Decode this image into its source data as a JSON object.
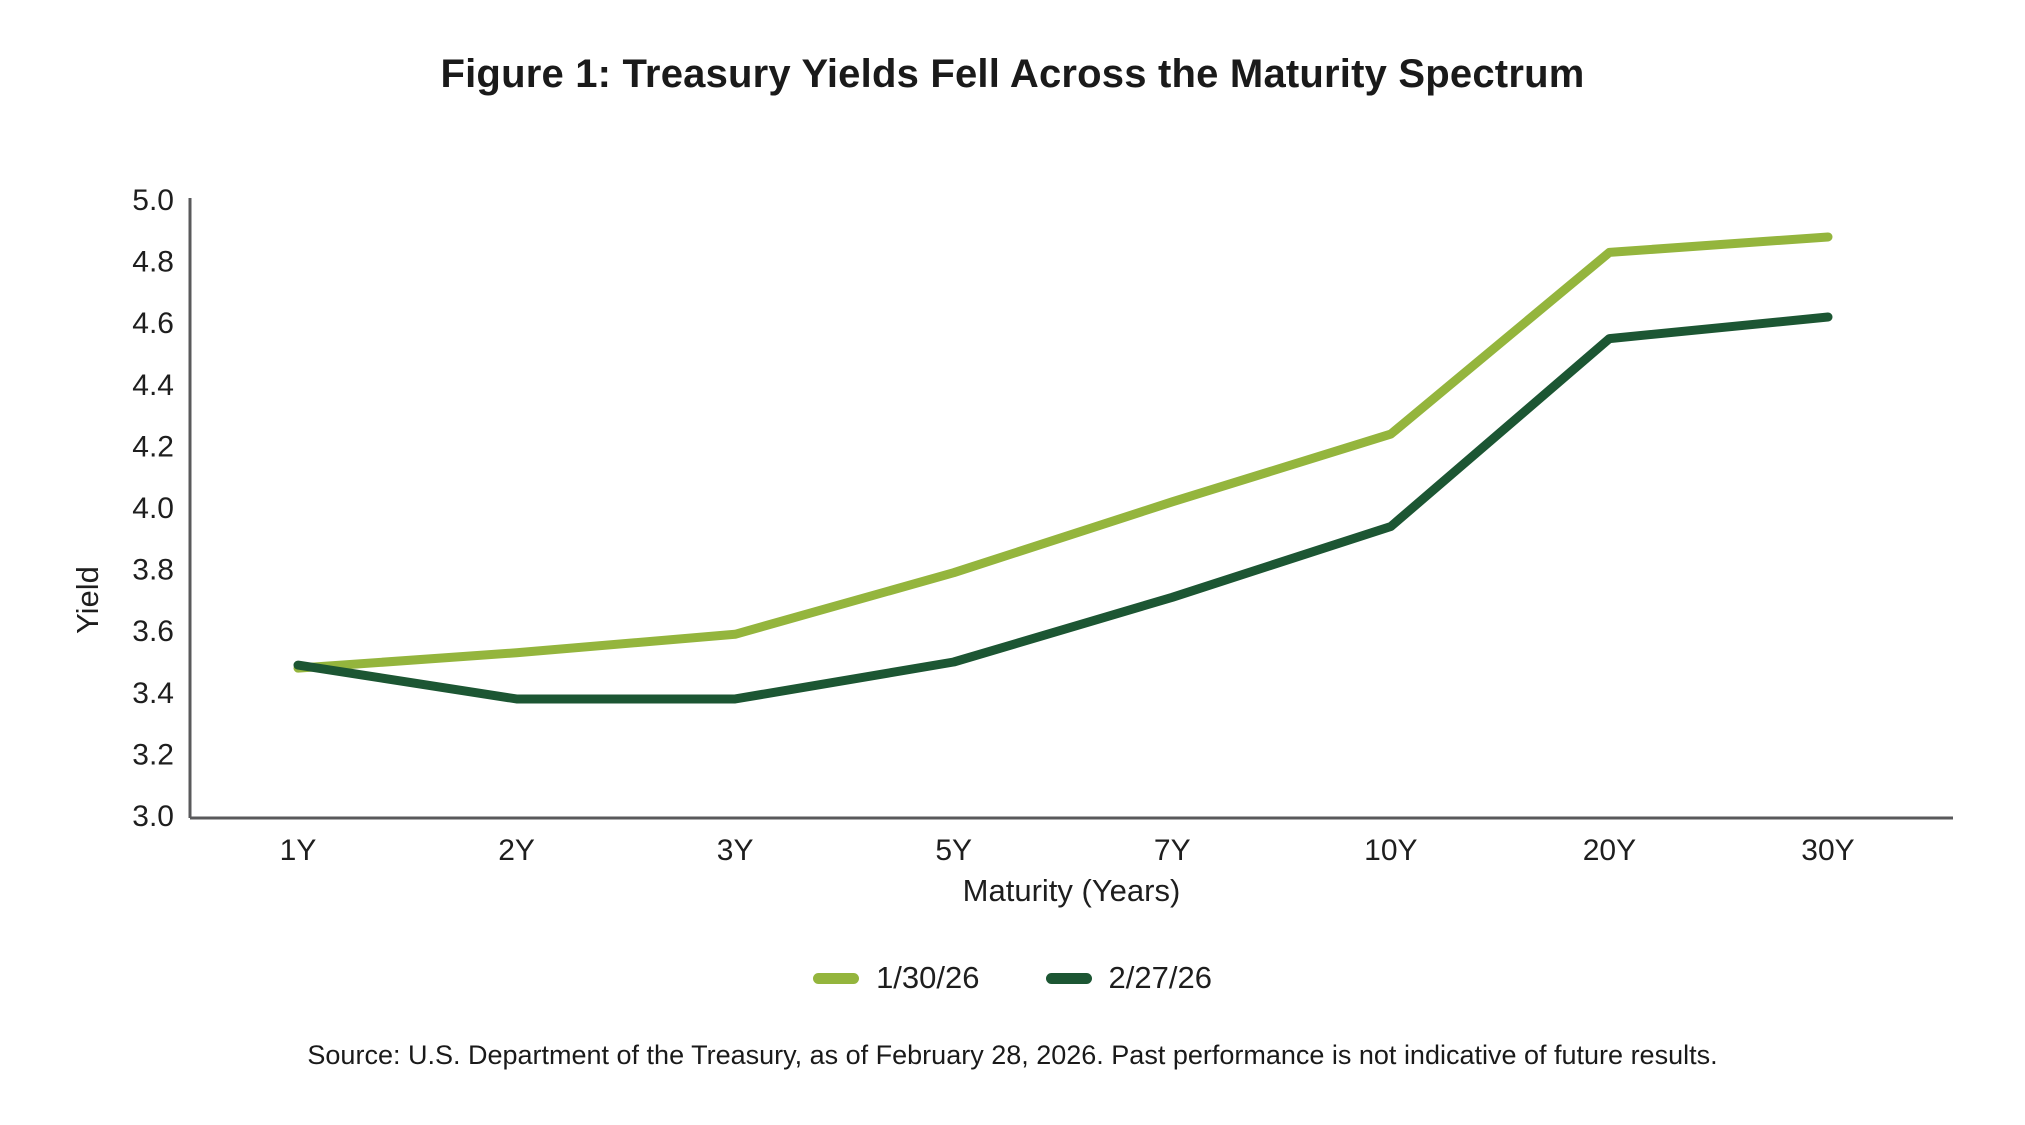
{
  "chart_data": {
    "type": "line",
    "title": "Figure 1: Treasury Yields Fell Across the Maturity Spectrum",
    "xlabel": "Maturity (Years)",
    "ylabel": "Yield",
    "categories": [
      "1Y",
      "2Y",
      "3Y",
      "5Y",
      "7Y",
      "10Y",
      "20Y",
      "30Y"
    ],
    "series": [
      {
        "name": "1/30/26",
        "color": "#94b53d",
        "values": [
          3.48,
          3.53,
          3.59,
          3.79,
          4.02,
          4.24,
          4.83,
          4.88
        ]
      },
      {
        "name": "2/27/26",
        "color": "#1c5633",
        "values": [
          3.49,
          3.38,
          3.38,
          3.5,
          3.71,
          3.94,
          4.55,
          4.62
        ]
      }
    ],
    "ylim": [
      3.0,
      5.0
    ],
    "yticks": [
      5.0,
      4.8,
      4.6,
      4.4,
      4.2,
      4.0,
      3.8,
      3.6,
      3.4,
      3.2,
      3.0
    ],
    "grid": false,
    "legend_position": "bottom",
    "axis_color": "#59595b",
    "text_color": "#1e1e1e"
  },
  "source_note": "Source: U.S. Department of the Treasury, as of February 28, 2026. Past performance is not indicative of future results."
}
